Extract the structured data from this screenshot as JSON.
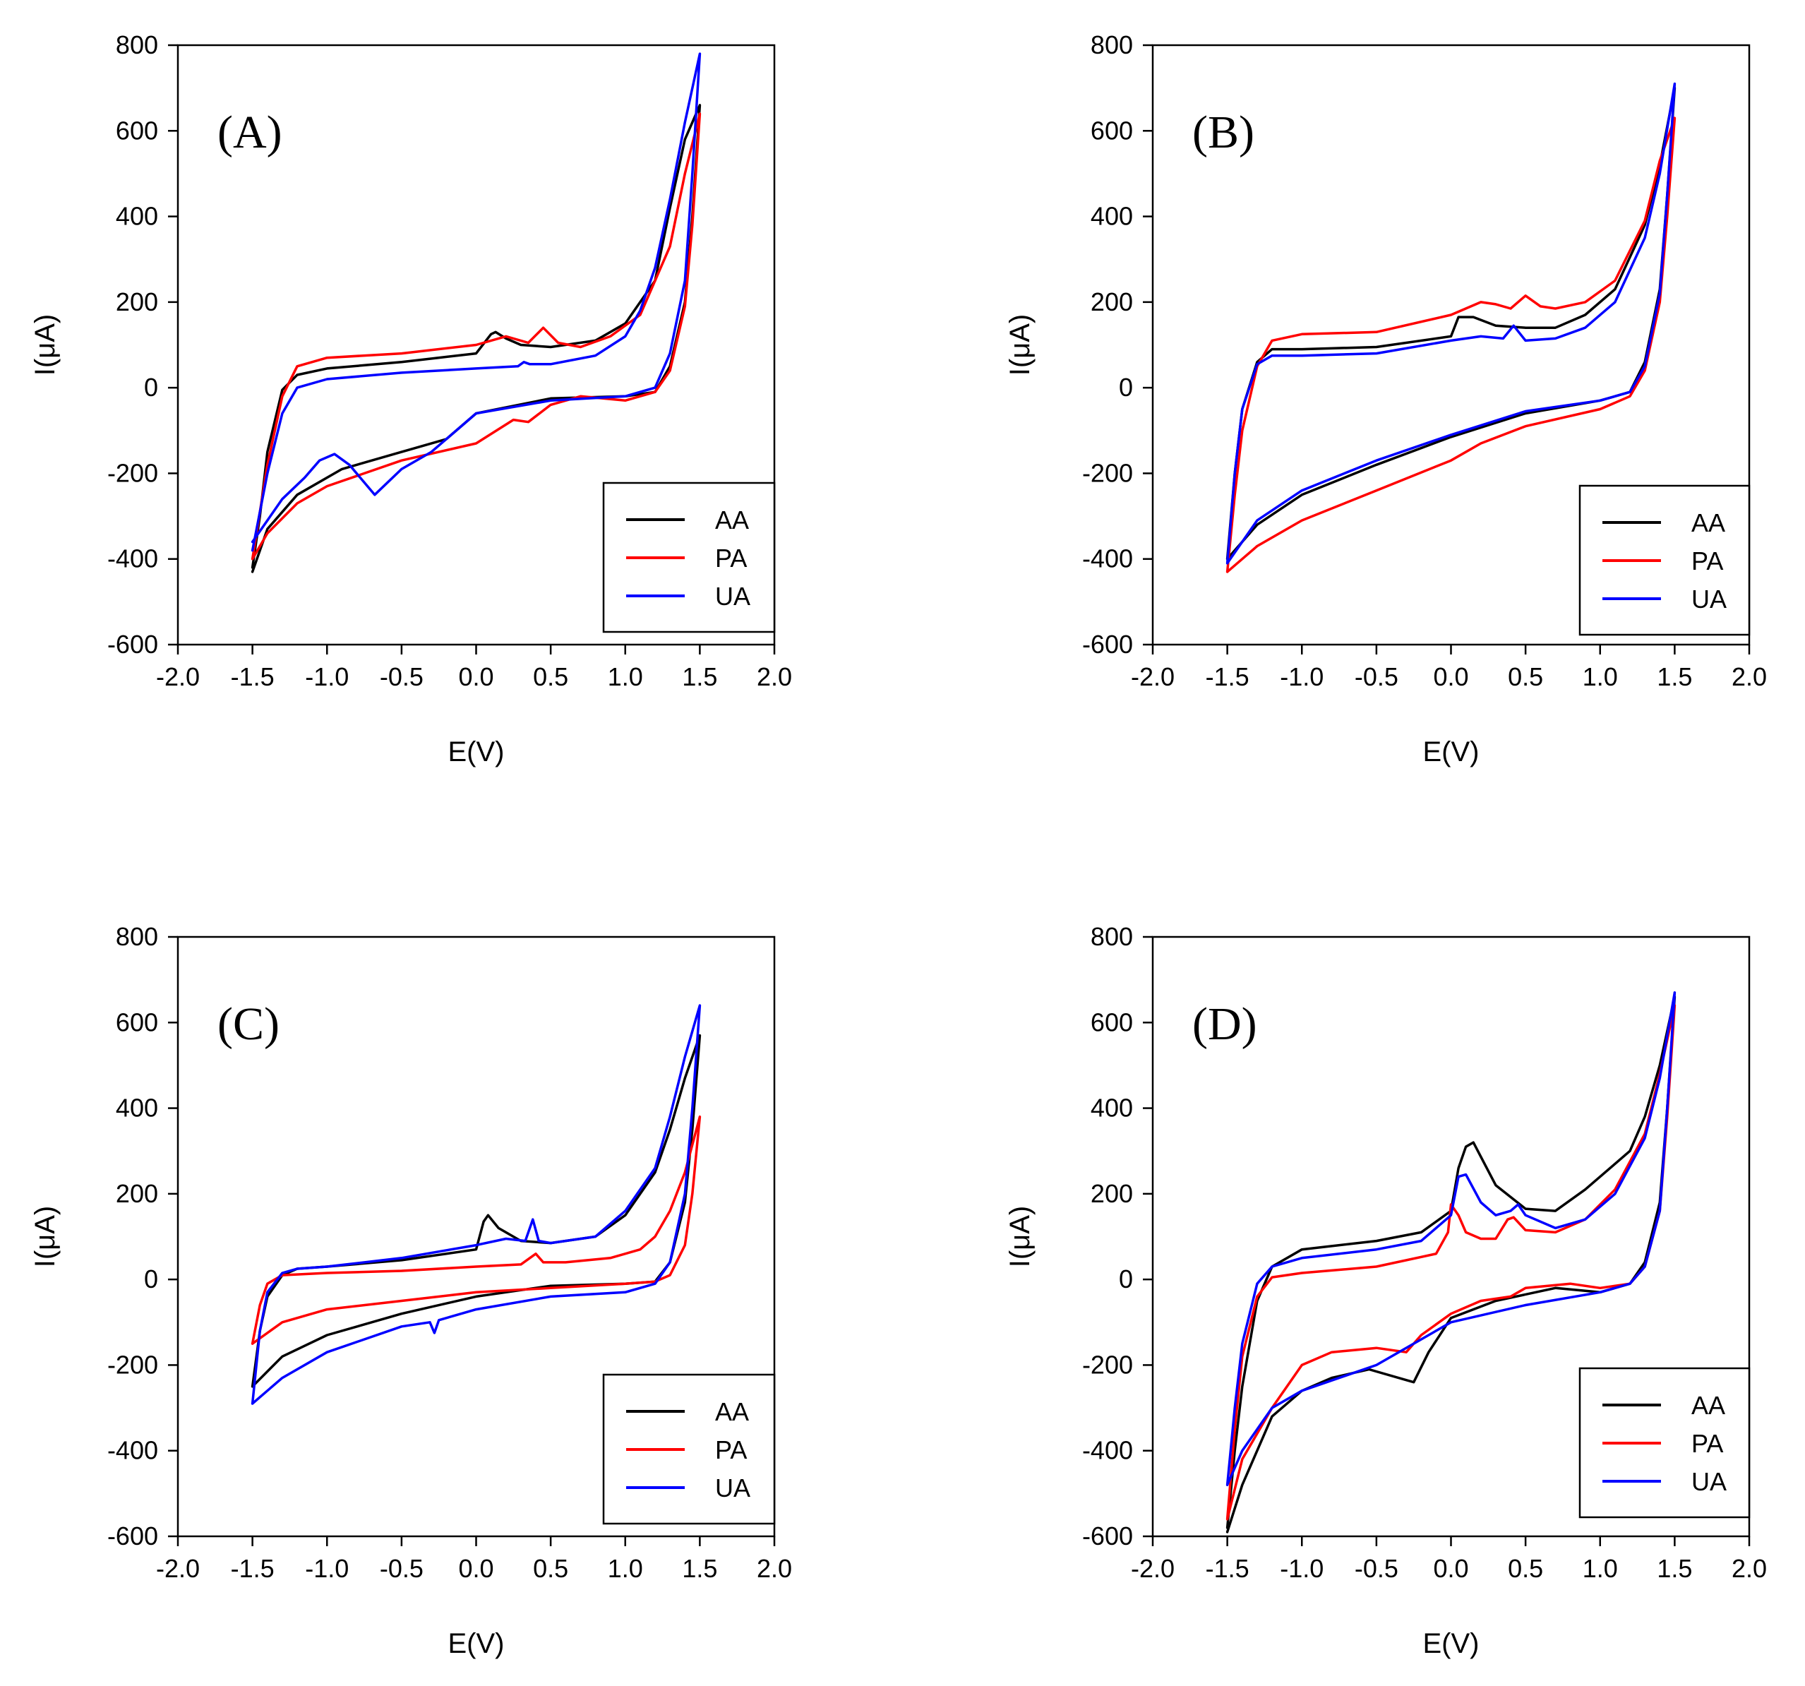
{
  "figure": {
    "title": ""
  },
  "chart_data": [
    {
      "type": "line",
      "panel_label": "(A)",
      "xlabel": "E(V)",
      "ylabel": "I(μA)",
      "xlim": [
        -2.0,
        2.0
      ],
      "ylim": [
        -600,
        800
      ],
      "xticks": [
        "-2.0",
        "-1.5",
        "-1.0",
        "-0.5",
        "0.0",
        "0.5",
        "1.0",
        "1.5",
        "2.0"
      ],
      "yticks": [
        "-600",
        "-400",
        "-200",
        "0",
        "200",
        "400",
        "600",
        "800"
      ],
      "legend_position": "bottom-right",
      "series": [
        {
          "name": "AA",
          "color": "#000000",
          "x": [
            -1.5,
            -1.45,
            -1.4,
            -1.3,
            -1.2,
            -1.0,
            -0.5,
            0.0,
            0.1,
            0.13,
            0.2,
            0.3,
            0.5,
            0.8,
            1.0,
            1.2,
            1.3,
            1.4,
            1.5,
            1.45,
            1.4,
            1.3,
            1.2,
            1.0,
            0.5,
            0.0,
            -0.2,
            -0.5,
            -0.9,
            -1.2,
            -1.4,
            -1.5
          ],
          "y": [
            -420,
            -300,
            -150,
            -5,
            30,
            45,
            60,
            80,
            125,
            130,
            115,
            100,
            95,
            110,
            150,
            250,
            420,
            580,
            660,
            400,
            200,
            50,
            -10,
            -20,
            -25,
            -60,
            -120,
            -150,
            -190,
            -250,
            -330,
            -430
          ]
        },
        {
          "name": "PA",
          "color": "#ff0000",
          "x": [
            -1.5,
            -1.4,
            -1.3,
            -1.2,
            -1.0,
            -0.5,
            0.0,
            0.2,
            0.35,
            0.45,
            0.55,
            0.7,
            0.9,
            1.1,
            1.3,
            1.4,
            1.5,
            1.45,
            1.4,
            1.3,
            1.2,
            1.0,
            0.7,
            0.5,
            0.35,
            0.25,
            0.0,
            -0.5,
            -1.0,
            -1.2,
            -1.4,
            -1.5
          ],
          "y": [
            -400,
            -180,
            -20,
            50,
            70,
            80,
            100,
            120,
            105,
            140,
            105,
            95,
            120,
            170,
            330,
            500,
            640,
            380,
            190,
            40,
            -10,
            -30,
            -20,
            -40,
            -80,
            -75,
            -130,
            -170,
            -230,
            -270,
            -340,
            -400
          ]
        },
        {
          "name": "UA",
          "color": "#0000ff",
          "x": [
            -1.5,
            -1.4,
            -1.3,
            -1.2,
            -1.0,
            -0.5,
            0.0,
            0.28,
            0.32,
            0.36,
            0.5,
            0.8,
            1.0,
            1.1,
            1.2,
            1.3,
            1.4,
            1.5,
            1.45,
            1.4,
            1.3,
            1.2,
            1.0,
            0.5,
            0.0,
            -0.3,
            -0.5,
            -0.68,
            -0.85,
            -0.95,
            -1.05,
            -1.15,
            -1.3,
            -1.4,
            -1.5
          ],
          "y": [
            -380,
            -200,
            -60,
            0,
            20,
            35,
            45,
            50,
            60,
            55,
            55,
            75,
            120,
            180,
            280,
            440,
            620,
            780,
            500,
            250,
            80,
            0,
            -20,
            -30,
            -60,
            -150,
            -190,
            -250,
            -180,
            -155,
            -170,
            -210,
            -260,
            -310,
            -360
          ]
        }
      ]
    },
    {
      "type": "line",
      "panel_label": "(B)",
      "xlabel": "E(V)",
      "ylabel": "I(μA)",
      "xlim": [
        -2.0,
        2.0
      ],
      "ylim": [
        -600,
        800
      ],
      "xticks": [
        "-2.0",
        "-1.5",
        "-1.0",
        "-0.5",
        "0.0",
        "0.5",
        "1.0",
        "1.5",
        "2.0"
      ],
      "yticks": [
        "-600",
        "-400",
        "-200",
        "0",
        "200",
        "400",
        "600",
        "800"
      ],
      "legend_position": "bottom-right",
      "series": [
        {
          "name": "AA",
          "color": "#000000",
          "x": [
            -1.5,
            -1.45,
            -1.4,
            -1.3,
            -1.2,
            -1.0,
            -0.5,
            0.0,
            0.05,
            0.15,
            0.3,
            0.5,
            0.7,
            0.9,
            1.1,
            1.3,
            1.4,
            1.5,
            1.45,
            1.4,
            1.3,
            1.2,
            1.0,
            0.5,
            0.0,
            -0.5,
            -1.0,
            -1.3,
            -1.5
          ],
          "y": [
            -400,
            -200,
            -50,
            60,
            90,
            90,
            95,
            120,
            165,
            165,
            145,
            140,
            140,
            170,
            230,
            380,
            520,
            700,
            450,
            230,
            60,
            -10,
            -30,
            -60,
            -115,
            -180,
            -250,
            -320,
            -400
          ]
        },
        {
          "name": "PA",
          "color": "#ff0000",
          "x": [
            -1.5,
            -1.45,
            -1.4,
            -1.3,
            -1.2,
            -1.0,
            -0.5,
            0.0,
            0.2,
            0.3,
            0.4,
            0.5,
            0.6,
            0.7,
            0.9,
            1.1,
            1.3,
            1.4,
            1.5,
            1.45,
            1.4,
            1.3,
            1.2,
            1.0,
            0.5,
            0.2,
            0.0,
            -0.5,
            -1.0,
            -1.3,
            -1.5
          ],
          "y": [
            -430,
            -250,
            -100,
            50,
            110,
            125,
            130,
            170,
            200,
            195,
            185,
            215,
            190,
            185,
            200,
            250,
            390,
            530,
            630,
            400,
            200,
            40,
            -20,
            -50,
            -90,
            -130,
            -170,
            -240,
            -310,
            -370,
            -430
          ]
        },
        {
          "name": "UA",
          "color": "#0000ff",
          "x": [
            -1.5,
            -1.45,
            -1.4,
            -1.3,
            -1.2,
            -1.0,
            -0.5,
            0.0,
            0.2,
            0.35,
            0.42,
            0.5,
            0.7,
            0.9,
            1.1,
            1.3,
            1.4,
            1.5,
            1.45,
            1.4,
            1.3,
            1.2,
            1.0,
            0.5,
            0.0,
            -0.5,
            -1.0,
            -1.3,
            -1.5
          ],
          "y": [
            -410,
            -200,
            -50,
            55,
            75,
            75,
            80,
            110,
            120,
            115,
            145,
            110,
            115,
            140,
            200,
            350,
            500,
            710,
            450,
            220,
            50,
            -10,
            -30,
            -55,
            -110,
            -170,
            -240,
            -310,
            -410
          ]
        }
      ]
    },
    {
      "type": "line",
      "panel_label": "(C)",
      "xlabel": "E(V)",
      "ylabel": "I(μA)",
      "xlim": [
        -2.0,
        2.0
      ],
      "ylim": [
        -600,
        800
      ],
      "xticks": [
        "-2.0",
        "-1.5",
        "-1.0",
        "-0.5",
        "0.0",
        "0.5",
        "1.0",
        "1.5",
        "2.0"
      ],
      "yticks": [
        "-600",
        "-400",
        "-200",
        "0",
        "200",
        "400",
        "600",
        "800"
      ],
      "legend_position": "bottom-right",
      "series": [
        {
          "name": "AA",
          "color": "#000000",
          "x": [
            -1.5,
            -1.45,
            -1.4,
            -1.3,
            -1.2,
            -1.0,
            -0.5,
            0.0,
            0.05,
            0.08,
            0.15,
            0.3,
            0.5,
            0.8,
            1.0,
            1.2,
            1.3,
            1.4,
            1.5,
            1.45,
            1.4,
            1.3,
            1.2,
            1.0,
            0.5,
            0.0,
            -0.5,
            -1.0,
            -1.3,
            -1.5
          ],
          "y": [
            -250,
            -120,
            -40,
            10,
            25,
            30,
            45,
            70,
            135,
            150,
            120,
            90,
            85,
            100,
            150,
            250,
            350,
            470,
            570,
            350,
            180,
            40,
            -5,
            -10,
            -15,
            -40,
            -80,
            -130,
            -180,
            -250
          ]
        },
        {
          "name": "PA",
          "color": "#ff0000",
          "x": [
            -1.5,
            -1.45,
            -1.4,
            -1.3,
            -1.0,
            -0.5,
            0.0,
            0.3,
            0.38,
            0.4,
            0.45,
            0.6,
            0.9,
            1.1,
            1.2,
            1.3,
            1.4,
            1.5,
            1.45,
            1.4,
            1.3,
            1.2,
            1.0,
            0.5,
            0.0,
            -0.5,
            -1.0,
            -1.3,
            -1.5
          ],
          "y": [
            -150,
            -60,
            -10,
            10,
            15,
            20,
            30,
            35,
            55,
            60,
            40,
            40,
            50,
            70,
            100,
            160,
            250,
            380,
            200,
            80,
            10,
            -5,
            -10,
            -20,
            -30,
            -50,
            -70,
            -100,
            -150
          ]
        },
        {
          "name": "UA",
          "color": "#0000ff",
          "x": [
            -1.5,
            -1.45,
            -1.4,
            -1.3,
            -1.2,
            -1.0,
            -0.5,
            0.0,
            0.2,
            0.33,
            0.38,
            0.42,
            0.5,
            0.8,
            1.0,
            1.2,
            1.3,
            1.4,
            1.5,
            1.45,
            1.4,
            1.3,
            1.2,
            1.0,
            0.5,
            0.0,
            -0.25,
            -0.28,
            -0.31,
            -0.5,
            -1.0,
            -1.3,
            -1.5
          ],
          "y": [
            -290,
            -120,
            -30,
            15,
            25,
            30,
            50,
            80,
            95,
            90,
            140,
            90,
            85,
            100,
            160,
            260,
            380,
            520,
            640,
            400,
            200,
            40,
            -10,
            -30,
            -40,
            -70,
            -95,
            -125,
            -100,
            -110,
            -170,
            -230,
            -290
          ]
        }
      ]
    },
    {
      "type": "line",
      "panel_label": "(D)",
      "xlabel": "E(V)",
      "ylabel": "I(μA)",
      "xlim": [
        -2.0,
        2.0
      ],
      "ylim": [
        -600,
        800
      ],
      "xticks": [
        "-2.0",
        "-1.5",
        "-1.0",
        "-0.5",
        "0.0",
        "0.5",
        "1.0",
        "1.5",
        "2.0"
      ],
      "yticks": [
        "-600",
        "-400",
        "-200",
        "0",
        "200",
        "400",
        "600",
        "800"
      ],
      "legend_position": "bottom-right",
      "series": [
        {
          "name": "AA",
          "color": "#000000",
          "x": [
            -1.5,
            -1.45,
            -1.4,
            -1.3,
            -1.2,
            -1.0,
            -0.5,
            -0.2,
            0.0,
            0.05,
            0.1,
            0.15,
            0.3,
            0.5,
            0.7,
            0.9,
            1.0,
            1.2,
            1.3,
            1.4,
            1.5,
            1.45,
            1.4,
            1.3,
            1.2,
            1.0,
            0.7,
            0.3,
            0.0,
            -0.15,
            -0.25,
            -0.3,
            -0.55,
            -0.8,
            -1.0,
            -1.2,
            -1.4,
            -1.5
          ],
          "y": [
            -580,
            -400,
            -250,
            -50,
            30,
            70,
            90,
            110,
            160,
            260,
            310,
            320,
            220,
            165,
            160,
            210,
            240,
            300,
            380,
            500,
            660,
            400,
            180,
            40,
            -10,
            -30,
            -20,
            -50,
            -90,
            -170,
            -240,
            -235,
            -210,
            -230,
            -260,
            -320,
            -480,
            -590
          ]
        },
        {
          "name": "PA",
          "color": "#ff0000",
          "x": [
            -1.5,
            -1.45,
            -1.4,
            -1.3,
            -1.2,
            -1.0,
            -0.5,
            -0.1,
            -0.02,
            0.0,
            0.05,
            0.1,
            0.2,
            0.3,
            0.38,
            0.42,
            0.5,
            0.7,
            0.9,
            1.1,
            1.3,
            1.4,
            1.5,
            1.45,
            1.4,
            1.3,
            1.2,
            1.0,
            0.8,
            0.5,
            0.4,
            0.2,
            0.0,
            -0.2,
            -0.3,
            -0.5,
            -0.8,
            -1.0,
            -1.2,
            -1.4,
            -1.5
          ],
          "y": [
            -560,
            -350,
            -180,
            -40,
            5,
            15,
            30,
            60,
            110,
            175,
            150,
            110,
            95,
            95,
            140,
            145,
            115,
            110,
            140,
            210,
            340,
            480,
            640,
            380,
            160,
            30,
            -10,
            -20,
            -10,
            -20,
            -40,
            -50,
            -80,
            -130,
            -170,
            -160,
            -170,
            -200,
            -300,
            -420,
            -560
          ]
        },
        {
          "name": "UA",
          "color": "#0000ff",
          "x": [
            -1.5,
            -1.45,
            -1.4,
            -1.3,
            -1.2,
            -1.0,
            -0.5,
            -0.2,
            0.0,
            0.05,
            0.1,
            0.2,
            0.3,
            0.4,
            0.45,
            0.5,
            0.7,
            0.9,
            1.1,
            1.3,
            1.4,
            1.5,
            1.45,
            1.4,
            1.3,
            1.2,
            1.0,
            0.5,
            0.0,
            -0.5,
            -1.0,
            -1.2,
            -1.4,
            -1.5
          ],
          "y": [
            -480,
            -300,
            -150,
            -10,
            30,
            50,
            70,
            90,
            150,
            240,
            245,
            180,
            150,
            160,
            175,
            150,
            120,
            140,
            200,
            330,
            470,
            670,
            400,
            160,
            30,
            -10,
            -30,
            -60,
            -100,
            -200,
            -260,
            -300,
            -400,
            -480
          ]
        }
      ]
    }
  ]
}
